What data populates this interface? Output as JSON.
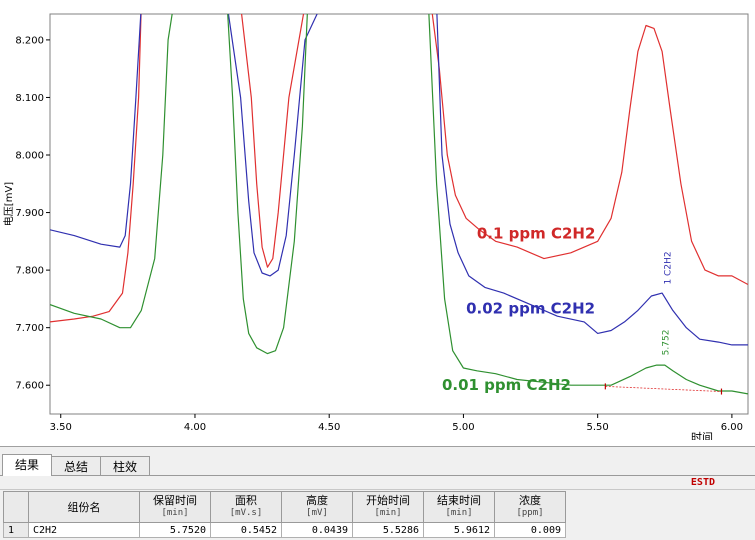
{
  "chart_data": {
    "type": "line",
    "xlabel": "时间",
    "ylabel": "电压[mV]",
    "xlim": [
      3.46,
      6.06
    ],
    "ylim": [
      7.55,
      8.245
    ],
    "x_ticks": [
      "3.50",
      "4.00",
      "4.50",
      "5.00",
      "5.50",
      "6.00"
    ],
    "y_ticks": [
      "7.600",
      "7.700",
      "7.800",
      "7.900",
      "8.000",
      "8.100",
      "8.200"
    ],
    "series": [
      {
        "name": "0.1 ppm C2H2",
        "color": "#e03030",
        "x": [
          3.46,
          3.55,
          3.62,
          3.68,
          3.73,
          3.75,
          3.77,
          3.79,
          3.8,
          3.86,
          3.93,
          4.02,
          4.1,
          4.17,
          4.21,
          4.23,
          4.25,
          4.27,
          4.29,
          4.31,
          4.35,
          4.41,
          4.47,
          4.52,
          4.56,
          4.62,
          4.7,
          4.79,
          4.84,
          4.88,
          4.91,
          4.94,
          4.97,
          5.01,
          5.06,
          5.12,
          5.2,
          5.3,
          5.4,
          5.5,
          5.55,
          5.59,
          5.62,
          5.65,
          5.68,
          5.71,
          5.74,
          5.77,
          5.81,
          5.85,
          5.9,
          5.95,
          6.0,
          6.06
        ],
        "y": [
          7.71,
          7.715,
          7.72,
          7.728,
          7.76,
          7.83,
          7.95,
          8.1,
          8.26,
          8.26,
          8.26,
          8.26,
          8.26,
          8.26,
          8.1,
          7.95,
          7.84,
          7.805,
          7.82,
          7.9,
          8.1,
          8.26,
          8.26,
          8.26,
          8.26,
          8.26,
          8.26,
          8.26,
          8.26,
          8.26,
          8.15,
          8.0,
          7.93,
          7.89,
          7.87,
          7.85,
          7.84,
          7.82,
          7.83,
          7.85,
          7.89,
          7.97,
          8.08,
          8.18,
          8.225,
          8.22,
          8.18,
          8.08,
          7.95,
          7.85,
          7.8,
          7.79,
          7.79,
          7.775
        ]
      },
      {
        "name": "0.02 ppm C2H2",
        "color": "#3030b0",
        "x": [
          3.46,
          3.55,
          3.65,
          3.72,
          3.74,
          3.76,
          3.78,
          3.8,
          3.82,
          3.84,
          3.86,
          3.95,
          4.05,
          4.12,
          4.17,
          4.2,
          4.22,
          4.25,
          4.28,
          4.31,
          4.34,
          4.37,
          4.41,
          4.47,
          4.55,
          4.65,
          4.75,
          4.83,
          4.87,
          4.9,
          4.92,
          4.95,
          4.98,
          5.02,
          5.08,
          5.15,
          5.25,
          5.35,
          5.45,
          5.5,
          5.55,
          5.6,
          5.65,
          5.7,
          5.74,
          5.78,
          5.83,
          5.88,
          5.95,
          6.0,
          6.06
        ],
        "y": [
          7.87,
          7.86,
          7.845,
          7.84,
          7.86,
          7.95,
          8.1,
          8.26,
          8.26,
          8.26,
          8.26,
          8.26,
          8.26,
          8.26,
          8.1,
          7.92,
          7.83,
          7.795,
          7.79,
          7.8,
          7.86,
          8.0,
          8.2,
          8.26,
          8.26,
          8.26,
          8.26,
          8.26,
          8.26,
          8.26,
          8.0,
          7.88,
          7.83,
          7.79,
          7.77,
          7.76,
          7.74,
          7.72,
          7.71,
          7.69,
          7.695,
          7.71,
          7.73,
          7.755,
          7.76,
          7.73,
          7.7,
          7.68,
          7.675,
          7.67,
          7.67
        ]
      },
      {
        "name": "0.01 ppm C2H2",
        "color": "#2f9030",
        "x": [
          3.46,
          3.55,
          3.65,
          3.72,
          3.76,
          3.8,
          3.85,
          3.88,
          3.9,
          3.92,
          3.95,
          4.05,
          4.12,
          4.14,
          4.16,
          4.18,
          4.2,
          4.23,
          4.27,
          4.3,
          4.33,
          4.37,
          4.4,
          4.42,
          4.45,
          4.55,
          4.65,
          4.75,
          4.82,
          4.85,
          4.87,
          4.9,
          4.93,
          4.96,
          5.0,
          5.05,
          5.12,
          5.2,
          5.3,
          5.4,
          5.5,
          5.55,
          5.62,
          5.68,
          5.72,
          5.75,
          5.78,
          5.83,
          5.88,
          5.95,
          6.0,
          6.06
        ],
        "y": [
          7.74,
          7.725,
          7.715,
          7.7,
          7.7,
          7.73,
          7.82,
          8.0,
          8.2,
          8.26,
          8.26,
          8.26,
          8.26,
          8.1,
          7.9,
          7.75,
          7.69,
          7.665,
          7.655,
          7.66,
          7.7,
          7.85,
          8.05,
          8.26,
          8.26,
          8.26,
          8.26,
          8.26,
          8.26,
          8.26,
          8.26,
          7.95,
          7.75,
          7.66,
          7.63,
          7.625,
          7.62,
          7.61,
          7.605,
          7.6,
          7.6,
          7.6,
          7.615,
          7.63,
          7.635,
          7.635,
          7.625,
          7.61,
          7.6,
          7.59,
          7.59,
          7.585
        ]
      }
    ],
    "annotations": {
      "labels": [
        {
          "text": "0.1 ppm C2H2",
          "x": 5.05,
          "y": 7.855,
          "color": "#d02828"
        },
        {
          "text": "0.02 ppm C2H2",
          "x": 5.01,
          "y": 7.725,
          "color": "#3030b0"
        },
        {
          "text": "0.01 ppm C2H2",
          "x": 4.92,
          "y": 7.592,
          "color": "#2f9030"
        }
      ],
      "peak_label": {
        "text": "5.752",
        "x": 5.752,
        "y": 7.645,
        "color": "#2f9030"
      },
      "peak_label_blue": {
        "text": "1  C2H2",
        "x": 5.76,
        "y": 7.768,
        "color": "#3030b0"
      },
      "baseline": {
        "x": [
          5.5286,
          5.9612
        ],
        "y": [
          7.598,
          7.589
        ],
        "color": "#e03030"
      }
    }
  },
  "tabs": [
    {
      "label": "结果"
    },
    {
      "label": "总结"
    },
    {
      "label": "柱效"
    }
  ],
  "estd": "ESTD",
  "table": {
    "headers": [
      {
        "label": "组份名",
        "unit": ""
      },
      {
        "label": "保留时间",
        "unit": "[min]"
      },
      {
        "label": "面积",
        "unit": "[mV.s]"
      },
      {
        "label": "高度",
        "unit": "[mV]"
      },
      {
        "label": "开始时间",
        "unit": "[min]"
      },
      {
        "label": "结束时间",
        "unit": "[min]"
      },
      {
        "label": "浓度",
        "unit": "[ppm]"
      }
    ],
    "rows": [
      {
        "no": "1",
        "name": "C2H2",
        "rt": "5.7520",
        "area": "0.5452",
        "height": "0.0439",
        "start": "5.5286",
        "end": "5.9612",
        "conc": "0.009"
      }
    ]
  }
}
